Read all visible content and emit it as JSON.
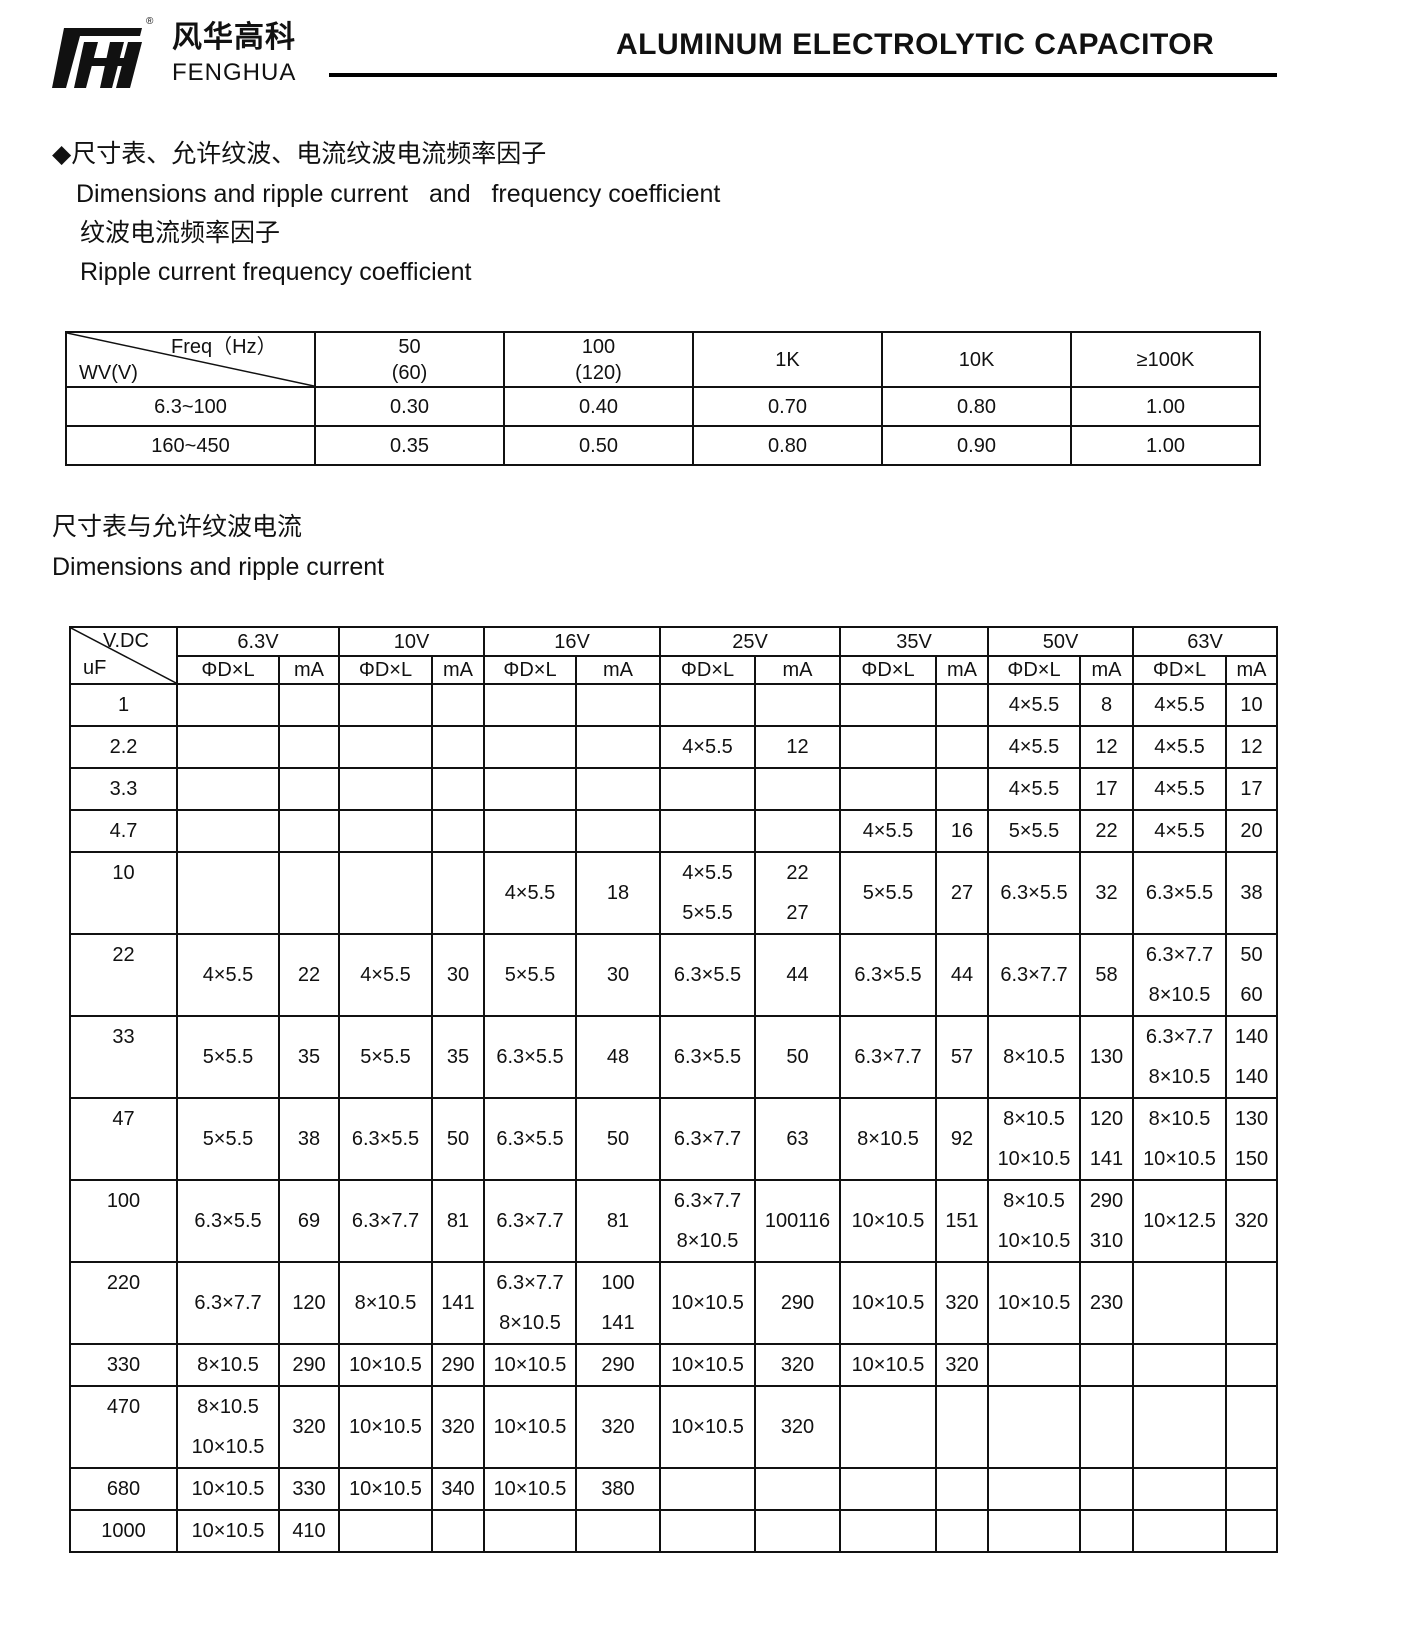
{
  "header": {
    "brand_cn": "风华高科",
    "brand_en": "FENGHUA",
    "registered": "®",
    "title": "ALUMINUM ELECTROLYTIC CAPACITOR"
  },
  "section1": {
    "title_cn": "◆尺寸表、允许纹波、电流纹波电流频率因子",
    "title_en": "Dimensions and ripple current   and   frequency coefficient",
    "sub_cn": "纹波电流频率因子",
    "sub_en": "Ripple current frequency coefficient"
  },
  "freq_table": {
    "corner_top": "Freq（Hz）",
    "corner_bottom": "WV(V)",
    "headers": [
      [
        "50",
        "(60)"
      ],
      [
        "100",
        "(120)"
      ],
      [
        "1K"
      ],
      [
        "10K"
      ],
      [
        "≥100K"
      ]
    ],
    "rows": [
      {
        "wv": "6.3~100",
        "values": [
          "0.30",
          "0.40",
          "0.70",
          "0.80",
          "1.00"
        ]
      },
      {
        "wv": "160~450",
        "values": [
          "0.35",
          "0.50",
          "0.80",
          "0.90",
          "1.00"
        ]
      }
    ]
  },
  "section2": {
    "title_cn": "尺寸表与允许纹波电流",
    "title_en": "Dimensions and ripple current"
  },
  "dim_table": {
    "corner_top": "V.DC",
    "corner_bottom": "uF",
    "voltages": [
      "6.3V",
      "10V",
      "16V",
      "25V",
      "35V",
      "50V",
      "63V"
    ],
    "sub_headers": [
      "ΦD×L",
      "mA"
    ],
    "rows": [
      {
        "uf": "1",
        "cells": [
          [],
          [],
          [],
          [],
          [],
          [],
          [],
          [],
          [],
          [],
          [
            "4×5.5"
          ],
          [
            "8"
          ],
          [
            "4×5.5"
          ],
          [
            "10"
          ]
        ]
      },
      {
        "uf": "2.2",
        "cells": [
          [],
          [],
          [],
          [],
          [],
          [],
          [
            "4×5.5"
          ],
          [
            "12"
          ],
          [],
          [],
          [
            "4×5.5"
          ],
          [
            "12"
          ],
          [
            "4×5.5"
          ],
          [
            "12"
          ]
        ]
      },
      {
        "uf": "3.3",
        "cells": [
          [],
          [],
          [],
          [],
          [],
          [],
          [],
          [],
          [],
          [],
          [
            "4×5.5"
          ],
          [
            "17"
          ],
          [
            "4×5.5"
          ],
          [
            "17"
          ]
        ]
      },
      {
        "uf": "4.7",
        "cells": [
          [],
          [],
          [],
          [],
          [],
          [],
          [],
          [],
          [
            "4×5.5"
          ],
          [
            "16"
          ],
          [
            "5×5.5"
          ],
          [
            "22"
          ],
          [
            "4×5.5"
          ],
          [
            "20"
          ]
        ]
      },
      {
        "uf": "10",
        "cells": [
          [],
          [],
          [],
          [],
          [
            "4×5.5"
          ],
          [
            "18"
          ],
          [
            "4×5.5",
            "5×5.5"
          ],
          [
            "22",
            "27"
          ],
          [
            "5×5.5"
          ],
          [
            "27"
          ],
          [
            "6.3×5.5"
          ],
          [
            "32"
          ],
          [
            "6.3×5.5"
          ],
          [
            "38"
          ]
        ]
      },
      {
        "uf": "22",
        "cells": [
          [
            "4×5.5"
          ],
          [
            "22"
          ],
          [
            "4×5.5"
          ],
          [
            "30"
          ],
          [
            "5×5.5"
          ],
          [
            "30"
          ],
          [
            "6.3×5.5"
          ],
          [
            "44"
          ],
          [
            "6.3×5.5"
          ],
          [
            "44"
          ],
          [
            "6.3×7.7"
          ],
          [
            "58"
          ],
          [
            "6.3×7.7",
            "8×10.5"
          ],
          [
            "50",
            "60"
          ]
        ]
      },
      {
        "uf": "33",
        "cells": [
          [
            "5×5.5"
          ],
          [
            "35"
          ],
          [
            "5×5.5"
          ],
          [
            "35"
          ],
          [
            "6.3×5.5"
          ],
          [
            "48"
          ],
          [
            "6.3×5.5"
          ],
          [
            "50"
          ],
          [
            "6.3×7.7"
          ],
          [
            "57"
          ],
          [
            "8×10.5"
          ],
          [
            "130"
          ],
          [
            "6.3×7.7",
            "8×10.5"
          ],
          [
            "140",
            "140"
          ]
        ]
      },
      {
        "uf": "47",
        "cells": [
          [
            "5×5.5"
          ],
          [
            "38"
          ],
          [
            "6.3×5.5"
          ],
          [
            "50"
          ],
          [
            "6.3×5.5"
          ],
          [
            "50"
          ],
          [
            "6.3×7.7"
          ],
          [
            "63"
          ],
          [
            "8×10.5"
          ],
          [
            "92"
          ],
          [
            "8×10.5",
            "10×10.5"
          ],
          [
            "120",
            "141"
          ],
          [
            "8×10.5",
            "10×10.5"
          ],
          [
            "130",
            "150"
          ]
        ]
      },
      {
        "uf": "100",
        "cells": [
          [
            "6.3×5.5"
          ],
          [
            "69"
          ],
          [
            "6.3×7.7"
          ],
          [
            "81"
          ],
          [
            "6.3×7.7"
          ],
          [
            "81"
          ],
          [
            "6.3×7.7",
            "8×10.5"
          ],
          [
            "100116"
          ],
          [
            "10×10.5"
          ],
          [
            "151"
          ],
          [
            "8×10.5",
            "10×10.5"
          ],
          [
            "290",
            "310"
          ],
          [
            "10×12.5"
          ],
          [
            "320"
          ]
        ]
      },
      {
        "uf": "220",
        "cells": [
          [
            "6.3×7.7"
          ],
          [
            "120"
          ],
          [
            "8×10.5"
          ],
          [
            "141"
          ],
          [
            "6.3×7.7",
            "8×10.5"
          ],
          [
            "100",
            "141"
          ],
          [
            "10×10.5"
          ],
          [
            "290"
          ],
          [
            "10×10.5"
          ],
          [
            "320"
          ],
          [
            "10×10.5"
          ],
          [
            "230"
          ],
          [],
          []
        ]
      },
      {
        "uf": "330",
        "cells": [
          [
            "8×10.5"
          ],
          [
            "290"
          ],
          [
            "10×10.5"
          ],
          [
            "290"
          ],
          [
            "10×10.5"
          ],
          [
            "290"
          ],
          [
            "10×10.5"
          ],
          [
            "320"
          ],
          [
            "10×10.5"
          ],
          [
            "320"
          ],
          [],
          [],
          [],
          []
        ]
      },
      {
        "uf": "470",
        "cells": [
          [
            "8×10.5",
            "10×10.5"
          ],
          [
            "320"
          ],
          [
            "10×10.5"
          ],
          [
            "320"
          ],
          [
            "10×10.5"
          ],
          [
            "320"
          ],
          [
            "10×10.5"
          ],
          [
            "320"
          ],
          [],
          [],
          [],
          [],
          [],
          []
        ]
      },
      {
        "uf": "680",
        "cells": [
          [
            "10×10.5"
          ],
          [
            "330"
          ],
          [
            "10×10.5"
          ],
          [
            "340"
          ],
          [
            "10×10.5"
          ],
          [
            "380"
          ],
          [],
          [],
          [],
          [],
          [],
          [],
          [],
          []
        ]
      },
      {
        "uf": "1000",
        "cells": [
          [
            "10×10.5"
          ],
          [
            "410"
          ],
          [],
          [],
          [],
          [],
          [],
          [],
          [],
          [],
          [],
          [],
          [],
          []
        ]
      }
    ]
  }
}
